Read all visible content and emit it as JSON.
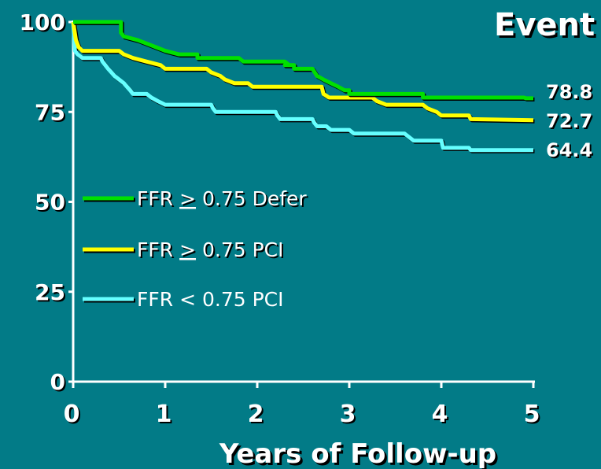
{
  "chart_data": {
    "type": "line",
    "title": "Event",
    "xlabel": "Years of Follow-up",
    "ylabel": "",
    "xlim": [
      0,
      5
    ],
    "ylim": [
      0,
      100
    ],
    "x_ticks": [
      "0",
      "1",
      "2",
      "3",
      "4",
      "5"
    ],
    "y_ticks": [
      "0",
      "25",
      "50",
      "75",
      "100"
    ],
    "grid": false,
    "legend_position": "left-middle",
    "series": [
      {
        "name": "FFR > 0.75 Defer",
        "legend_prefix": "FFR ",
        "legend_underlined": ">",
        "legend_suffix": " 0.75 Defer",
        "end_label": "78.8",
        "color": "#00E000",
        "points": [
          [
            0,
            100
          ],
          [
            0.52,
            100
          ],
          [
            0.52,
            97
          ],
          [
            0.55,
            96
          ],
          [
            0.7,
            95
          ],
          [
            0.8,
            94
          ],
          [
            0.9,
            93
          ],
          [
            1.0,
            92
          ],
          [
            1.15,
            91
          ],
          [
            1.35,
            91
          ],
          [
            1.35,
            90
          ],
          [
            1.8,
            90
          ],
          [
            1.85,
            89
          ],
          [
            2.3,
            89
          ],
          [
            2.35,
            88
          ],
          [
            2.3,
            88
          ],
          [
            2.4,
            88
          ],
          [
            2.4,
            87
          ],
          [
            2.6,
            87
          ],
          [
            2.65,
            85
          ],
          [
            2.72,
            84
          ],
          [
            2.8,
            83
          ],
          [
            2.88,
            82
          ],
          [
            2.95,
            81
          ],
          [
            3.0,
            81
          ],
          [
            3.0,
            80
          ],
          [
            3.8,
            80
          ],
          [
            3.8,
            79
          ],
          [
            4.9,
            79
          ],
          [
            4.92,
            78.8
          ],
          [
            5,
            78.8
          ]
        ]
      },
      {
        "name": "FFR > 0.75 PCI",
        "legend_prefix": "FFR ",
        "legend_underlined": ">",
        "legend_suffix": " 0.75 PCI",
        "end_label": "72.7",
        "color": "#FFFF00",
        "points": [
          [
            0,
            100
          ],
          [
            0.03,
            95
          ],
          [
            0.06,
            93
          ],
          [
            0.1,
            92
          ],
          [
            0.5,
            92
          ],
          [
            0.55,
            91
          ],
          [
            0.65,
            90
          ],
          [
            0.8,
            89
          ],
          [
            0.95,
            88
          ],
          [
            1.0,
            87
          ],
          [
            1.45,
            87
          ],
          [
            1.5,
            86
          ],
          [
            1.6,
            85
          ],
          [
            1.65,
            84
          ],
          [
            1.75,
            83
          ],
          [
            1.9,
            83
          ],
          [
            1.95,
            82
          ],
          [
            2.7,
            82
          ],
          [
            2.72,
            80
          ],
          [
            2.78,
            79
          ],
          [
            3.25,
            79
          ],
          [
            3.3,
            78
          ],
          [
            3.4,
            77
          ],
          [
            3.8,
            77
          ],
          [
            3.85,
            76
          ],
          [
            3.95,
            75
          ],
          [
            4.0,
            74
          ],
          [
            4.3,
            74
          ],
          [
            4.32,
            73
          ],
          [
            5,
            72.7
          ]
        ]
      },
      {
        "name": "FFR < 0.75 PCI",
        "legend_prefix": "FFR < 0.75 PCI",
        "legend_underlined": "",
        "legend_suffix": "",
        "end_label": "64.4",
        "color": "#66FFFF",
        "points": [
          [
            0,
            100
          ],
          [
            0.02,
            92
          ],
          [
            0.05,
            91
          ],
          [
            0.1,
            90
          ],
          [
            0.3,
            90
          ],
          [
            0.32,
            89
          ],
          [
            0.38,
            87
          ],
          [
            0.45,
            85
          ],
          [
            0.5,
            84
          ],
          [
            0.55,
            83
          ],
          [
            0.62,
            81
          ],
          [
            0.65,
            80
          ],
          [
            0.8,
            80
          ],
          [
            0.85,
            79
          ],
          [
            0.92,
            78
          ],
          [
            1.0,
            77
          ],
          [
            1.5,
            77
          ],
          [
            1.52,
            76
          ],
          [
            1.55,
            75
          ],
          [
            2.2,
            75
          ],
          [
            2.22,
            74
          ],
          [
            2.25,
            73
          ],
          [
            2.6,
            73
          ],
          [
            2.62,
            72
          ],
          [
            2.65,
            71
          ],
          [
            2.75,
            71
          ],
          [
            2.8,
            70
          ],
          [
            3.0,
            70
          ],
          [
            3.05,
            69
          ],
          [
            3.6,
            69
          ],
          [
            3.65,
            68
          ],
          [
            3.7,
            67
          ],
          [
            4.0,
            67
          ],
          [
            4.02,
            65
          ],
          [
            4.3,
            65
          ],
          [
            4.32,
            64.4
          ],
          [
            5,
            64.4
          ]
        ]
      }
    ]
  }
}
